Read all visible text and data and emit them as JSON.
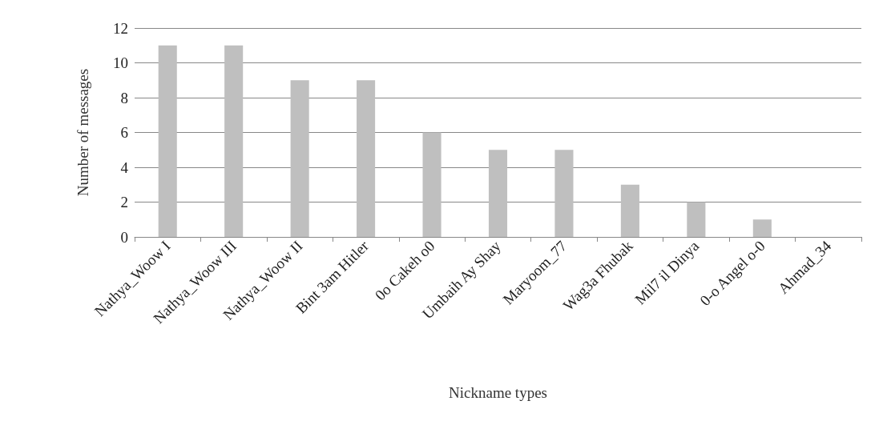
{
  "chart_data": {
    "type": "bar",
    "xlabel": "Nickname types",
    "ylabel": "Number of messages",
    "categories": [
      "Nathya_Woow I",
      "Nathya_Woow III",
      "Nathya_Woow II",
      "Bint 3am Hitler",
      "0o Cakeh o0",
      "Umbaih Ay Shay",
      "Maryoom_77",
      "Wag3a Fhubak",
      "Mil7 il Dinya",
      "0-o Angel o-0",
      "Ahmad_34"
    ],
    "values": [
      11,
      11,
      9,
      9,
      6,
      5,
      5,
      3,
      2,
      1,
      0
    ],
    "color": "#bfbfbf",
    "ylim": [
      0,
      12
    ],
    "yticks": [
      0,
      2,
      4,
      6,
      8,
      10,
      12
    ],
    "grid": "y"
  }
}
